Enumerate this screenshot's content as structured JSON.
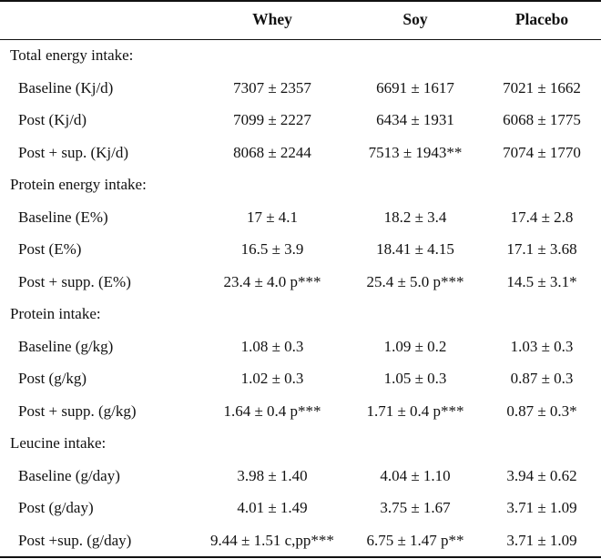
{
  "headers": [
    "Whey",
    "Soy",
    "Placebo"
  ],
  "sections": [
    {
      "label": "Total energy intake:",
      "rows": [
        {
          "label": "Baseline (Kj/d)",
          "values": [
            "7307 ± 2357",
            "6691 ± 1617",
            "7021 ± 1662"
          ]
        },
        {
          "label": "Post (Kj/d)",
          "values": [
            "7099 ± 2227",
            "6434 ± 1931",
            "6068 ± 1775"
          ]
        },
        {
          "label": "Post + sup. (Kj/d)",
          "values": [
            "8068 ± 2244",
            "7513 ± 1943**",
            "7074 ± 1770"
          ]
        }
      ]
    },
    {
      "label": "Protein energy intake:",
      "rows": [
        {
          "label": "Baseline (E%)",
          "values": [
            "17 ± 4.1",
            "18.2 ± 3.4",
            "17.4 ± 2.8"
          ]
        },
        {
          "label": "Post (E%)",
          "values": [
            "16.5 ± 3.9",
            "18.41 ± 4.15",
            "17.1 ± 3.68"
          ]
        },
        {
          "label": "Post + supp. (E%)",
          "values": [
            "23.4 ± 4.0 p***",
            "25.4 ± 5.0 p***",
            "14.5 ± 3.1*"
          ]
        }
      ]
    },
    {
      "label": "Protein intake:",
      "rows": [
        {
          "label": "Baseline (g/kg)",
          "values": [
            "1.08 ± 0.3",
            "1.09 ± 0.2",
            "1.03 ± 0.3"
          ]
        },
        {
          "label": "Post (g/kg)",
          "values": [
            "1.02 ± 0.3",
            "1.05 ± 0.3",
            "0.87 ± 0.3"
          ]
        },
        {
          "label": "Post + supp. (g/kg)",
          "values": [
            "1.64 ± 0.4 p***",
            "1.71 ± 0.4 p***",
            "0.87 ± 0.3*"
          ]
        }
      ]
    },
    {
      "label": "Leucine intake:",
      "rows": [
        {
          "label": "Baseline (g/day)",
          "values": [
            "3.98 ± 1.40",
            "4.04 ± 1.10",
            "3.94 ± 0.62"
          ]
        },
        {
          "label": "Post (g/day)",
          "values": [
            "4.01 ± 1.49",
            "3.75 ± 1.67",
            "3.71 ± 1.09"
          ]
        },
        {
          "label": "Post +sup. (g/day)",
          "values": [
            "9.44 ± 1.51 c,pp***",
            "6.75 ± 1.47 p**",
            "3.71 ± 1.09"
          ]
        }
      ]
    }
  ]
}
